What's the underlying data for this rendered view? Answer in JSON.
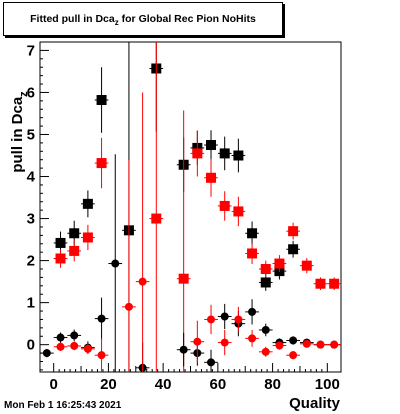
{
  "title": {
    "main": "Fitted pull in Dca",
    "sub": "z",
    "tail": " for Global Rec Pion NoHits"
  },
  "footer": "Mon Feb  1 16:25:43 2021",
  "chart_data": {
    "type": "scatter",
    "xlabel": "Quality",
    "ylabel": "pull in Dca",
    "ylabel_sub": "z",
    "xlim": [
      -5,
      105
    ],
    "ylim": [
      -0.65,
      7.2
    ],
    "x_ticks": [
      0,
      20,
      40,
      60,
      80,
      100
    ],
    "y_ticks": [
      0,
      1,
      2,
      3,
      4,
      5,
      6,
      7
    ],
    "grid": false,
    "series": [
      {
        "color": "#000000",
        "marker": "square",
        "points": [
          {
            "x": 2.5,
            "y": 2.42,
            "e": 0.27
          },
          {
            "x": 7.5,
            "y": 2.65,
            "e": 0.3
          },
          {
            "x": 12.5,
            "y": 3.35,
            "e": 0.32
          },
          {
            "x": 17.5,
            "y": 5.82,
            "e": 0.78
          },
          {
            "x": 27.5,
            "y": 2.72,
            "e": 4.5
          },
          {
            "x": 37.5,
            "y": 6.57,
            "e": 1.5
          },
          {
            "x": 47.5,
            "y": 4.28,
            "e": 0.65
          },
          {
            "x": 52.5,
            "y": 4.68,
            "e": 0.4
          },
          {
            "x": 57.5,
            "y": 4.75,
            "e": 0.35
          },
          {
            "x": 62.5,
            "y": 4.55,
            "e": 0.4
          },
          {
            "x": 67.5,
            "y": 4.5,
            "e": 0.4
          },
          {
            "x": 72.5,
            "y": 2.65,
            "e": 0.28
          },
          {
            "x": 77.5,
            "y": 1.48,
            "e": 0.2
          },
          {
            "x": 82.5,
            "y": 1.75,
            "e": 0.2
          },
          {
            "x": 87.5,
            "y": 2.27,
            "e": 0.2
          }
        ]
      },
      {
        "color": "#ff0000",
        "marker": "square",
        "points": [
          {
            "x": 2.5,
            "y": 2.05,
            "e": 0.22
          },
          {
            "x": 7.5,
            "y": 2.23,
            "e": 0.25
          },
          {
            "x": 12.5,
            "y": 2.55,
            "e": 0.3
          },
          {
            "x": 17.5,
            "y": 4.32,
            "e": 0.6
          },
          {
            "x": 37.5,
            "y": 3.0,
            "e": 4.5
          },
          {
            "x": 47.5,
            "y": 1.57,
            "e": 4.0
          },
          {
            "x": 52.5,
            "y": 4.55,
            "e": 0.55
          },
          {
            "x": 57.5,
            "y": 3.97,
            "e": 0.45
          },
          {
            "x": 62.5,
            "y": 3.3,
            "e": 0.35
          },
          {
            "x": 67.5,
            "y": 3.17,
            "e": 0.35
          },
          {
            "x": 72.5,
            "y": 2.17,
            "e": 0.25
          },
          {
            "x": 77.5,
            "y": 1.8,
            "e": 0.2
          },
          {
            "x": 82.5,
            "y": 1.93,
            "e": 0.2
          },
          {
            "x": 87.5,
            "y": 2.7,
            "e": 0.2
          },
          {
            "x": 92.5,
            "y": 1.88,
            "e": 0.18
          },
          {
            "x": 97.5,
            "y": 1.45,
            "e": 0.15
          },
          {
            "x": 102.5,
            "y": 1.45,
            "e": 0.15
          }
        ]
      },
      {
        "color": "#000000",
        "marker": "circle",
        "points": [
          {
            "x": -2.5,
            "y": -0.2,
            "e": 0.1
          },
          {
            "x": 2.5,
            "y": 0.17,
            "e": 0.12
          },
          {
            "x": 7.5,
            "y": 0.22,
            "e": 0.14
          },
          {
            "x": 12.5,
            "y": -0.07,
            "e": 0.15
          },
          {
            "x": 17.5,
            "y": 0.62,
            "e": 0.5
          },
          {
            "x": 22.5,
            "y": 1.93,
            "e": 2.6
          },
          {
            "x": 32.5,
            "y": -0.55,
            "e": 0.6
          },
          {
            "x": 47.5,
            "y": -0.12,
            "e": 0.4
          },
          {
            "x": 52.5,
            "y": -0.2,
            "e": 0.3
          },
          {
            "x": 57.5,
            "y": -0.42,
            "e": 0.3
          },
          {
            "x": 62.5,
            "y": 0.67,
            "e": 0.3
          },
          {
            "x": 67.5,
            "y": 0.5,
            "e": 0.3
          },
          {
            "x": 72.5,
            "y": 0.78,
            "e": 0.3
          },
          {
            "x": 77.5,
            "y": 0.35,
            "e": 0.15
          },
          {
            "x": 82.5,
            "y": 0.05,
            "e": 0.1
          },
          {
            "x": 87.5,
            "y": 0.1,
            "e": 0.1
          },
          {
            "x": 92.5,
            "y": 0.05,
            "e": 0.05
          },
          {
            "x": 97.5,
            "y": 0.0,
            "e": 0.05
          },
          {
            "x": 102.5,
            "y": 0.0,
            "e": 0.05
          }
        ]
      },
      {
        "color": "#ff0000",
        "marker": "circle",
        "points": [
          {
            "x": 2.5,
            "y": -0.05,
            "e": 0.1
          },
          {
            "x": 7.5,
            "y": -0.03,
            "e": 0.1
          },
          {
            "x": 12.5,
            "y": -0.1,
            "e": 0.12
          },
          {
            "x": 17.5,
            "y": -0.25,
            "e": 0.4
          },
          {
            "x": 27.5,
            "y": 0.9,
            "e": 3.5
          },
          {
            "x": 32.5,
            "y": 1.5,
            "e": 4.5
          },
          {
            "x": 52.5,
            "y": 0.07,
            "e": 0.5
          },
          {
            "x": 57.5,
            "y": 0.6,
            "e": 0.35
          },
          {
            "x": 62.5,
            "y": 0.05,
            "e": 0.3
          },
          {
            "x": 67.5,
            "y": 0.6,
            "e": 0.3
          },
          {
            "x": 72.5,
            "y": 0.15,
            "e": 0.2
          },
          {
            "x": 77.5,
            "y": -0.17,
            "e": 0.12
          },
          {
            "x": 82.5,
            "y": -0.02,
            "e": 0.1
          },
          {
            "x": 87.5,
            "y": -0.25,
            "e": 0.1
          },
          {
            "x": 92.5,
            "y": 0.02,
            "e": 0.05
          },
          {
            "x": 97.5,
            "y": 0.0,
            "e": 0.05
          },
          {
            "x": 102.5,
            "y": 0.0,
            "e": 0.05
          }
        ]
      }
    ]
  }
}
